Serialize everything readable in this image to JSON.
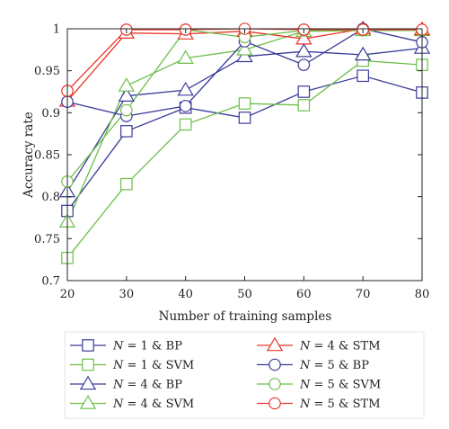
{
  "chart_data": {
    "type": "line",
    "xlabel": "Number of training samples",
    "ylabel": "Accuracy rate",
    "x": [
      20,
      30,
      40,
      50,
      60,
      70,
      80
    ],
    "xlim": [
      20,
      80
    ],
    "ylim": [
      0.7,
      1.0
    ],
    "xticks": [
      "20",
      "30",
      "40",
      "50",
      "60",
      "70",
      "80"
    ],
    "yticks": [
      "0.7",
      "0.75",
      "0.8",
      "0.85",
      "0.9",
      "0.95",
      "1"
    ],
    "grid": false,
    "legend_position": "bottom",
    "series": [
      {
        "name_prefix": "N",
        "name_rest": " = 1 & BP",
        "marker": "square",
        "color": "#3b3b9a",
        "values": [
          0.783,
          0.878,
          0.906,
          0.894,
          0.925,
          0.944,
          0.924
        ]
      },
      {
        "name_prefix": "N",
        "name_rest": " = 1 & SVM",
        "marker": "square",
        "color": "#6cbf4a",
        "values": [
          0.727,
          0.815,
          0.886,
          0.911,
          0.909,
          0.962,
          0.957
        ]
      },
      {
        "name_prefix": "N",
        "name_rest": " = 4 & BP",
        "marker": "triangle",
        "color": "#3b3b9a",
        "values": [
          0.806,
          0.92,
          0.927,
          0.967,
          0.973,
          0.969,
          0.977
        ]
      },
      {
        "name_prefix": "N",
        "name_rest": " = 4 & SVM",
        "marker": "triangle",
        "color": "#6cbf4a",
        "values": [
          0.77,
          0.932,
          0.965,
          0.975,
          0.997,
          0.998,
          0.998
        ]
      },
      {
        "name_prefix": "N",
        "name_rest": " = 4 & STM",
        "marker": "triangle",
        "color": "#e8352a",
        "values": [
          0.914,
          0.995,
          0.994,
          0.997,
          0.988,
          1.0,
          0.999
        ]
      },
      {
        "name_prefix": "N",
        "name_rest": " = 5 & BP",
        "marker": "circle",
        "color": "#3b3b9a",
        "values": [
          0.913,
          0.896,
          0.908,
          0.985,
          0.957,
          1.0,
          0.984
        ]
      },
      {
        "name_prefix": "N",
        "name_rest": " = 5 & SVM",
        "marker": "circle",
        "color": "#6cbf4a",
        "values": [
          0.818,
          0.903,
          0.999,
          0.99,
          0.998,
          0.998,
          0.998
        ]
      },
      {
        "name_prefix": "N",
        "name_rest": " = 5 & STM",
        "marker": "circle",
        "color": "#e8352a",
        "values": [
          0.926,
          0.999,
          0.999,
          1.0,
          0.999,
          0.999,
          0.999
        ]
      }
    ]
  }
}
